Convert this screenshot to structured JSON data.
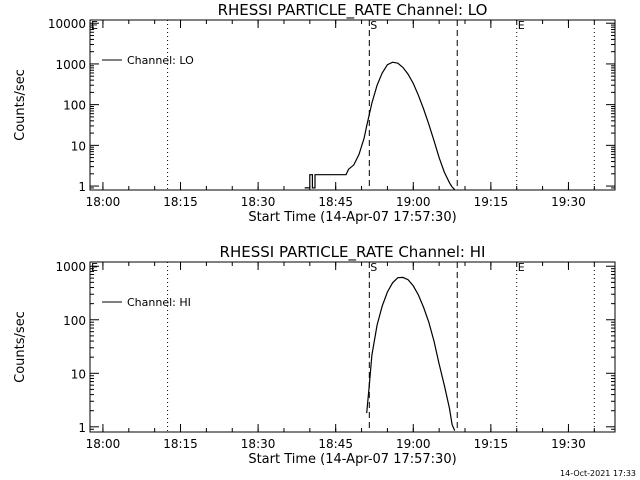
{
  "footer_timestamp": "14-Oct-2021 17:33",
  "chart_data": [
    {
      "type": "line",
      "title": "RHESSI PARTICLE_RATE Channel: LO",
      "xlabel": "Start Time (14-Apr-07 17:57:30)",
      "ylabel": "Counts/sec",
      "y_scale": "log",
      "xlim": [
        "17:57:30",
        "19:39:00"
      ],
      "ylim": [
        0.8,
        12000
      ],
      "x_ticks": [
        "18:00",
        "18:15",
        "18:30",
        "18:45",
        "19:00",
        "19:15",
        "19:30"
      ],
      "y_ticks": [
        "1",
        "10",
        "100",
        "1000",
        "10000"
      ],
      "legend": {
        "placement": "top-left",
        "label": "Channel: LO"
      },
      "markers": [
        {
          "label": "S",
          "time": "18:51:30",
          "style": "dashed"
        },
        {
          "label": "",
          "time": "19:08:30",
          "style": "dashed"
        },
        {
          "label": "E",
          "time": "19:20:00",
          "style": "dotted"
        },
        {
          "label": "",
          "time": "18:12:30",
          "style": "dotted"
        },
        {
          "label": "",
          "time": "19:35:00",
          "style": "dotted"
        },
        {
          "label": "E",
          "time": "17:57:30",
          "style": "none"
        }
      ],
      "series": [
        {
          "name": "Channel: LO",
          "x": [
            "18:39:00",
            "18:40:00",
            "18:40:00",
            "18:40:30",
            "18:40:30",
            "18:41:00",
            "18:41:00",
            "18:47:00",
            "18:47:30",
            "18:48:30",
            "18:49:30",
            "18:50:30",
            "18:51:00",
            "18:52:00",
            "18:53:00",
            "18:54:00",
            "18:55:00",
            "18:56:00",
            "18:57:00",
            "18:58:00",
            "18:59:00",
            "19:00:00",
            "19:01:00",
            "19:02:00",
            "19:03:00",
            "19:04:00",
            "19:05:00",
            "19:06:00",
            "19:07:00",
            "19:07:30",
            "19:08:00"
          ],
          "y": [
            0.9,
            0.9,
            1.9,
            1.9,
            0.9,
            0.9,
            1.9,
            1.9,
            2.6,
            3.3,
            6,
            15,
            30,
            110,
            300,
            600,
            960,
            1100,
            1040,
            820,
            560,
            330,
            170,
            78,
            33,
            13,
            5,
            2.2,
            1.2,
            0.95,
            0.82
          ]
        }
      ]
    },
    {
      "type": "line",
      "title": "RHESSI PARTICLE_RATE Channel: HI",
      "xlabel": "Start Time (14-Apr-07 17:57:30)",
      "ylabel": "Counts/sec",
      "y_scale": "log",
      "xlim": [
        "17:57:30",
        "19:39:00"
      ],
      "ylim": [
        0.8,
        1200
      ],
      "x_ticks": [
        "18:00",
        "18:15",
        "18:30",
        "18:45",
        "19:00",
        "19:15",
        "19:30"
      ],
      "y_ticks": [
        "1",
        "10",
        "100",
        "1000"
      ],
      "legend": {
        "placement": "top-left",
        "label": "Channel: HI"
      },
      "markers": [
        {
          "label": "S",
          "time": "18:51:30",
          "style": "dashed"
        },
        {
          "label": "",
          "time": "19:08:30",
          "style": "dashed"
        },
        {
          "label": "E",
          "time": "19:20:00",
          "style": "dotted"
        },
        {
          "label": "",
          "time": "18:12:30",
          "style": "dotted"
        },
        {
          "label": "",
          "time": "19:35:00",
          "style": "dotted"
        },
        {
          "label": "E",
          "time": "17:57:30",
          "style": "none"
        }
      ],
      "series": [
        {
          "name": "Channel: HI",
          "x": [
            "18:51:00",
            "18:51:30",
            "18:52:00",
            "18:53:00",
            "18:54:00",
            "18:55:00",
            "18:56:00",
            "18:57:00",
            "18:58:00",
            "18:59:00",
            "19:00:00",
            "19:01:00",
            "19:02:00",
            "19:03:00",
            "19:04:00",
            "19:05:00",
            "19:06:00",
            "19:07:00",
            "19:07:30",
            "19:08:00"
          ],
          "y": [
            1.8,
            6,
            22,
            80,
            180,
            330,
            490,
            610,
            620,
            560,
            430,
            290,
            170,
            90,
            40,
            15,
            6,
            2.2,
            1.1,
            0.85
          ]
        }
      ]
    }
  ]
}
